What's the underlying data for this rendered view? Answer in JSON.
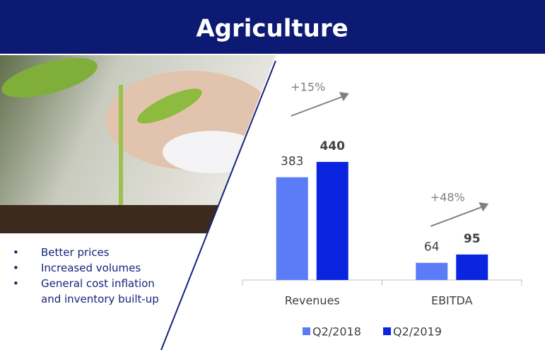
{
  "title": "Agriculture",
  "bullets": [
    "Better prices",
    "Increased volumes",
    "General cost inflation and inventory built-up"
  ],
  "chart_data": {
    "type": "bar",
    "categories": [
      "Revenues",
      "EBITDA"
    ],
    "series": [
      {
        "name": "Q2/2018",
        "color": "#5b7cf6",
        "values": [
          383,
          64
        ]
      },
      {
        "name": "Q2/2019",
        "color": "#0a24e0",
        "values": [
          440,
          95
        ]
      }
    ],
    "annotations": [
      "+15%",
      "+48%"
    ],
    "annotation_color": "#808080"
  }
}
